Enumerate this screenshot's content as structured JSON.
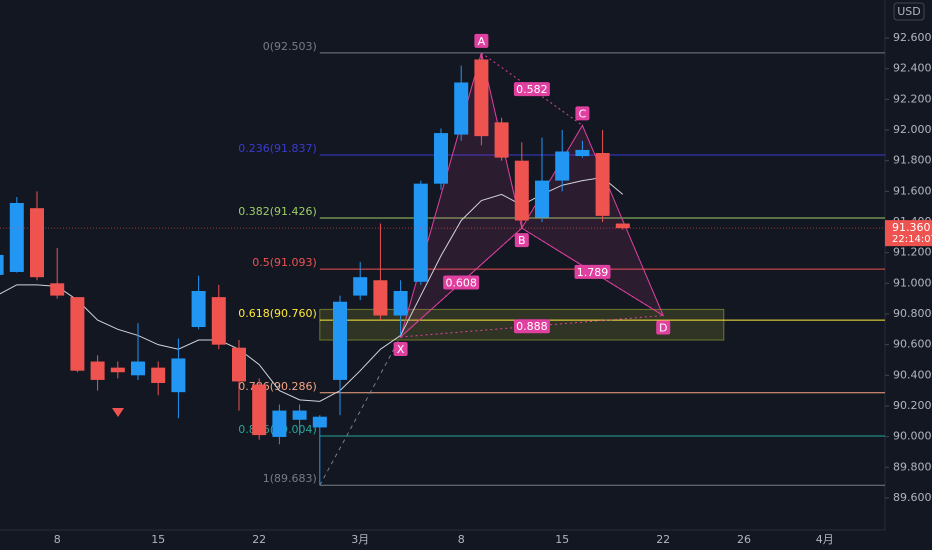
{
  "chart_data": {
    "type": "candlestick",
    "currency": "USD",
    "categories": [
      null,
      null,
      null,
      "8",
      null,
      null,
      null,
      null,
      "15",
      null,
      null,
      null,
      null,
      "22",
      null,
      null,
      null,
      null,
      "3月",
      null,
      null,
      null,
      null,
      "8",
      null,
      null,
      null,
      null,
      "15",
      null,
      null,
      null,
      null,
      "22",
      null,
      null,
      null,
      "26",
      null,
      null,
      null,
      "4月"
    ],
    "open": [
      91.055,
      91.074,
      91.49,
      91.0,
      90.91,
      90.49,
      90.45,
      90.4,
      90.45,
      90.29,
      90.715,
      90.91,
      90.58,
      90.34,
      89.998,
      90.11,
      90.06,
      90.37,
      90.92,
      91.02,
      90.79,
      91.01,
      91.65,
      91.97,
      92.46,
      92.05,
      91.8,
      91.43,
      91.67,
      91.83,
      91.85,
      91.39,
      null,
      null,
      null,
      null,
      null,
      null,
      null,
      null,
      null,
      null
    ],
    "high": [
      91.22,
      91.563,
      91.6,
      91.23,
      90.91,
      90.53,
      90.49,
      90.74,
      90.49,
      90.64,
      91.05,
      90.99,
      90.63,
      90.38,
      90.21,
      90.21,
      90.14,
      90.92,
      91.14,
      91.39,
      91.02,
      91.67,
      92.01,
      92.42,
      92.503,
      92.08,
      91.92,
      91.95,
      92.0,
      91.93,
      92.0,
      91.39,
      null,
      null,
      null,
      null,
      null,
      null,
      null,
      null,
      null,
      null
    ],
    "low": [
      91.02,
      91.07,
      91.02,
      90.9,
      90.42,
      90.3,
      90.38,
      90.37,
      90.27,
      90.12,
      90.7,
      90.57,
      90.17,
      89.98,
      89.95,
      90.01,
      89.683,
      90.14,
      90.89,
      90.76,
      90.66,
      90.99,
      91.61,
      91.93,
      91.9,
      91.8,
      91.36,
      91.4,
      91.6,
      91.82,
      91.4,
      91.35,
      null,
      null,
      null,
      null,
      null,
      null,
      null,
      null,
      null,
      null
    ],
    "close": [
      91.185,
      91.524,
      91.04,
      90.92,
      90.43,
      90.37,
      90.42,
      90.49,
      90.35,
      90.51,
      90.95,
      90.6,
      90.36,
      90.01,
      90.17,
      90.17,
      90.13,
      90.88,
      91.04,
      90.79,
      90.95,
      91.65,
      91.98,
      92.31,
      91.96,
      91.82,
      91.41,
      91.67,
      91.86,
      91.87,
      91.44,
      91.36,
      null,
      null,
      null,
      null,
      null,
      null,
      null,
      null,
      null,
      null
    ],
    "ma": [
      90.92,
      90.99,
      90.99,
      90.98,
      90.89,
      90.76,
      90.7,
      90.66,
      90.6,
      90.57,
      90.63,
      90.63,
      90.57,
      90.47,
      90.3,
      90.24,
      90.23,
      90.3,
      90.43,
      90.57,
      90.66,
      90.92,
      91.18,
      91.41,
      91.54,
      91.58,
      91.51,
      91.58,
      91.64,
      91.67,
      91.69,
      91.58,
      null,
      null,
      null,
      null,
      null,
      null,
      null,
      null,
      null,
      null
    ],
    "up_color": "#2196f3",
    "down_color": "#ef5350",
    "ylim": [
      89.391,
      92.848
    ],
    "yticks": [
      {
        "value": 89.6,
        "label": "89.600"
      },
      {
        "value": 89.8,
        "label": "89.800"
      },
      {
        "value": 90.0,
        "label": "90.000"
      },
      {
        "value": 90.2,
        "label": "90.200"
      },
      {
        "value": 90.4,
        "label": "90.400"
      },
      {
        "value": 90.6,
        "label": "90.600"
      },
      {
        "value": 90.8,
        "label": "90.800"
      },
      {
        "value": 91.0,
        "label": "91.000"
      },
      {
        "value": 91.2,
        "label": "91.200"
      },
      {
        "value": 91.4,
        "label": "91.400"
      },
      {
        "value": 91.6,
        "label": "91.600"
      },
      {
        "value": 91.8,
        "label": "91.800"
      },
      {
        "value": 92.0,
        "label": "92.000"
      },
      {
        "value": 92.2,
        "label": "92.200"
      },
      {
        "value": 92.4,
        "label": "92.400"
      },
      {
        "value": 92.6,
        "label": "92.600"
      }
    ],
    "fib_levels": [
      {
        "value": 92.503,
        "label": "0(92.503)",
        "color": "#787b86"
      },
      {
        "value": 91.837,
        "label": "0.236(91.837)",
        "color": "#3a3ad0"
      },
      {
        "value": 91.426,
        "label": "0.382(91.426)",
        "color": "#9ccc65"
      },
      {
        "value": 91.093,
        "label": "0.5(91.093)",
        "color": "#ef5350"
      },
      {
        "value": 90.76,
        "label": "0.618(90.760)",
        "color": "#ffeb3b"
      },
      {
        "value": 90.286,
        "label": "0.786(90.286)",
        "color": "#f4a582"
      },
      {
        "value": 90.004,
        "label": "0.886(90.004)",
        "color": "#26a69a"
      },
      {
        "value": 89.683,
        "label": "1(89.683)",
        "color": "#787b86"
      }
    ],
    "pattern": {
      "color": "#e040a0",
      "points": [
        {
          "label": "X",
          "index": 20,
          "value": 90.65
        },
        {
          "label": "A",
          "index": 24,
          "value": 92.503
        },
        {
          "label": "B",
          "index": 26,
          "value": 91.36
        },
        {
          "label": "C",
          "index": 29,
          "value": 92.03
        },
        {
          "label": "D",
          "index": 33,
          "value": 90.79
        }
      ],
      "ratios": [
        {
          "from": "A",
          "to": "C",
          "label": "0.582"
        },
        {
          "from": "X",
          "to": "B",
          "label": "0.608"
        },
        {
          "from": "B",
          "to": "D",
          "label": "1.789"
        },
        {
          "from": "X",
          "to": "D",
          "label": "0.888"
        }
      ]
    },
    "zone": {
      "from": 16,
      "to": 36,
      "low": 90.63,
      "high": 90.83
    },
    "last_price": {
      "value": 91.36,
      "label": "91.360",
      "countdown": "22:14:07"
    }
  }
}
